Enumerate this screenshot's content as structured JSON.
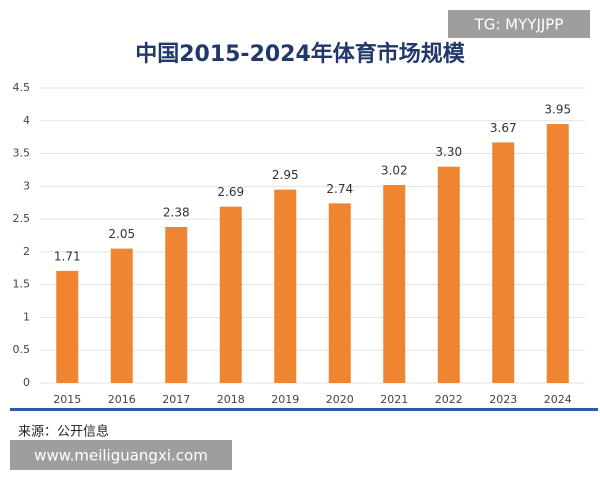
{
  "chart_data": {
    "type": "bar",
    "title": "中国2015-2024年体育市场规模",
    "categories": [
      "2015",
      "2016",
      "2017",
      "2018",
      "2019",
      "2020",
      "2021",
      "2022",
      "2023",
      "2024"
    ],
    "values": [
      1.71,
      2.05,
      2.38,
      2.69,
      2.95,
      2.74,
      3.02,
      3.3,
      3.67,
      3.95
    ],
    "value_labels": [
      "1.71",
      "2.05",
      "2.38",
      "2.69",
      "2.95",
      "2.74",
      "3.02",
      "3.30",
      "3.67",
      "3.95"
    ],
    "color": "#ef8530",
    "ylim": [
      0,
      4.5
    ],
    "yticks": [
      0,
      0.5,
      1,
      1.5,
      2,
      2.5,
      3,
      3.5,
      4,
      4.5
    ],
    "grid": true,
    "source": "来源：公开信息"
  },
  "watermarks": [
    "TG: MYYJJPP",
    "www.meiliguangxi.com"
  ]
}
